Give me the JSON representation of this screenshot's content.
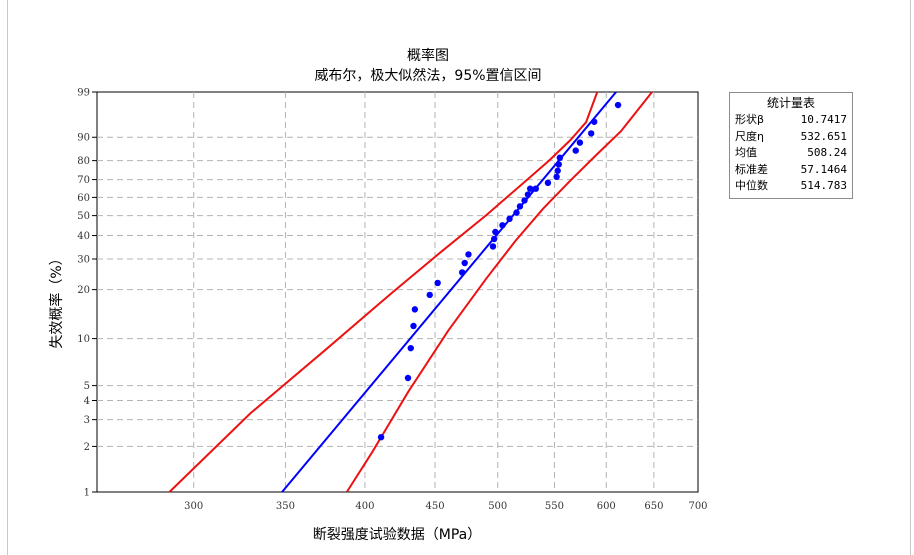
{
  "chart_data": {
    "type": "scatter",
    "title": "概率图",
    "subtitle": "威布尔，极大似然法，95%置信区间",
    "xlabel": "断裂强度试验数据（MPa）",
    "ylabel": "失效概率（%）",
    "x_scale": "log",
    "y_scale": "weibull",
    "xlim": [
      255,
      700
    ],
    "ylim": [
      1,
      99
    ],
    "grid": true,
    "x_ticks": [
      300,
      350,
      400,
      450,
      500,
      550,
      600,
      650,
      700
    ],
    "x_tick_labels": [
      "300",
      "350",
      "400",
      "450",
      "500",
      "550",
      "600",
      "650",
      "700"
    ],
    "y_ticks": [
      1,
      2,
      3,
      4,
      5,
      10,
      20,
      30,
      40,
      50,
      60,
      70,
      80,
      90,
      99
    ],
    "y_tick_labels": [
      "1",
      "2",
      "3",
      "4",
      "5",
      "10",
      "20",
      "30",
      "40",
      "50",
      "60",
      "70",
      "80",
      "90",
      "99"
    ],
    "series": [
      {
        "type": "scatter",
        "color": "#0000ff",
        "x": [
          411,
          430,
          432,
          434,
          435,
          446,
          452,
          471,
          473,
          476,
          496,
          497,
          498,
          504,
          510,
          516,
          519,
          523,
          526,
          528,
          533,
          544,
          552,
          553,
          554,
          555,
          570,
          574,
          585,
          588,
          612
        ],
        "y": [
          2.3,
          5.6,
          8.7,
          12.0,
          15.2,
          18.6,
          21.9,
          25.2,
          28.5,
          31.8,
          35.1,
          38.4,
          41.7,
          45.0,
          48.3,
          51.6,
          55.0,
          58.3,
          61.6,
          64.9,
          64.9,
          68.2,
          71.5,
          74.8,
          78.1,
          81.4,
          84.7,
          88.0,
          91.3,
          94.6,
          97.7
        ]
      },
      {
        "type": "line",
        "color": "#0000ff",
        "x": [
          348,
          610
        ],
        "y": [
          1,
          99
        ]
      },
      {
        "type": "line",
        "color": "#ee1111",
        "x": [
          288,
          330,
          375,
          420,
          455,
          490,
          520,
          545,
          565,
          580,
          591
        ],
        "y": [
          1,
          3.3,
          8.6,
          19.6,
          33,
          50,
          67,
          80,
          89,
          94.5,
          99
        ]
      },
      {
        "type": "line",
        "color": "#ee1111",
        "x": [
          388,
          405,
          430,
          460,
          490,
          515,
          540,
          565,
          590,
          615,
          648
        ],
        "y": [
          1,
          1.84,
          4.53,
          11.2,
          23,
          37.5,
          54,
          69.5,
          82.7,
          92,
          99
        ]
      }
    ]
  },
  "stats": {
    "title": "统计量表",
    "rows": [
      {
        "label": "形状β",
        "value": "10.7417"
      },
      {
        "label": "尺度η",
        "value": "532.651"
      },
      {
        "label": "均值",
        "value": "508.24"
      },
      {
        "label": "标准差",
        "value": "57.1464"
      },
      {
        "label": "中位数",
        "value": "514.783"
      }
    ]
  }
}
